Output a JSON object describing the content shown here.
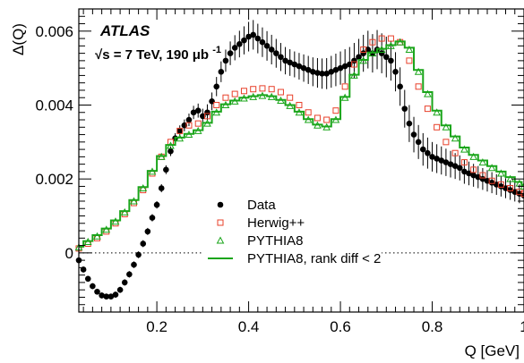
{
  "chart_data": {
    "type": "scatter",
    "title": "",
    "xlabel": "Q [GeV]",
    "ylabel": "Δ(Q)",
    "xlim": [
      0.03,
      1.0
    ],
    "ylim": [
      -0.0016,
      0.0066
    ],
    "x_tick_labels": [
      "0.2",
      "0.4",
      "0.6",
      "0.8",
      "1"
    ],
    "y_tick_labels": [
      "0",
      "0.002",
      "0.004",
      "0.006"
    ],
    "x_ticks": [
      0.2,
      0.4,
      0.6,
      0.8,
      1.0
    ],
    "y_ticks": [
      0,
      0.002,
      0.004,
      0.006
    ],
    "grid": false,
    "zero_line": "dotted",
    "annotations": {
      "experiment": "ATLAS",
      "energy": "√s = 7 TeV, 190 μb",
      "energy_sup": "-1"
    },
    "legend": {
      "placement": "lower-center",
      "entries": [
        {
          "label": "Data",
          "marker": "filled-circle",
          "color": "#000000"
        },
        {
          "label": "Herwig++",
          "marker": "open-square",
          "color": "#e8402a"
        },
        {
          "label": "PYTHIA8",
          "marker": "open-triangle",
          "color": "#1aa51a"
        },
        {
          "label": "PYTHIA8, rank diff < 2",
          "marker": "line",
          "color": "#1aa51a"
        }
      ]
    },
    "series": [
      {
        "name": "Data",
        "marker": "filled-circle",
        "color": "#000000",
        "points": [
          [
            0.03,
            -0.0002
          ],
          [
            0.04,
            -0.00045
          ],
          [
            0.05,
            -0.0007
          ],
          [
            0.06,
            -0.0009
          ],
          [
            0.07,
            -0.00105
          ],
          [
            0.08,
            -0.00115
          ],
          [
            0.09,
            -0.00118
          ],
          [
            0.1,
            -0.00118
          ],
          [
            0.11,
            -0.00113
          ],
          [
            0.12,
            -0.001
          ],
          [
            0.13,
            -0.0008
          ],
          [
            0.14,
            -0.00058
          ],
          [
            0.15,
            -0.00032
          ],
          [
            0.16,
            -5e-05
          ],
          [
            0.17,
            0.00025
          ],
          [
            0.18,
            0.00058
          ],
          [
            0.19,
            0.00095
          ],
          [
            0.2,
            0.0013
          ],
          [
            0.21,
            0.00175
          ],
          [
            0.22,
            0.00225
          ],
          [
            0.23,
            0.00275
          ],
          [
            0.24,
            0.0031
          ],
          [
            0.25,
            0.0033
          ],
          [
            0.26,
            0.00345
          ],
          [
            0.27,
            0.0036
          ],
          [
            0.28,
            0.0038
          ],
          [
            0.29,
            0.00385
          ],
          [
            0.3,
            0.0037
          ],
          [
            0.31,
            0.0038
          ],
          [
            0.32,
            0.0041
          ],
          [
            0.33,
            0.0045
          ],
          [
            0.34,
            0.0049
          ],
          [
            0.35,
            0.0052
          ],
          [
            0.36,
            0.0054
          ],
          [
            0.37,
            0.00555
          ],
          [
            0.38,
            0.00565
          ],
          [
            0.39,
            0.00575
          ],
          [
            0.4,
            0.00585
          ],
          [
            0.41,
            0.0059
          ],
          [
            0.42,
            0.0058
          ],
          [
            0.43,
            0.0057
          ],
          [
            0.44,
            0.0056
          ],
          [
            0.45,
            0.0055
          ],
          [
            0.46,
            0.0054
          ],
          [
            0.47,
            0.0053
          ],
          [
            0.48,
            0.0052
          ],
          [
            0.49,
            0.00515
          ],
          [
            0.5,
            0.0051
          ],
          [
            0.51,
            0.00505
          ],
          [
            0.52,
            0.005
          ],
          [
            0.53,
            0.00495
          ],
          [
            0.54,
            0.0049
          ],
          [
            0.55,
            0.00487
          ],
          [
            0.56,
            0.00485
          ],
          [
            0.57,
            0.00485
          ],
          [
            0.58,
            0.0049
          ],
          [
            0.59,
            0.00495
          ],
          [
            0.6,
            0.005
          ],
          [
            0.61,
            0.00505
          ],
          [
            0.62,
            0.0051
          ],
          [
            0.63,
            0.0052
          ],
          [
            0.64,
            0.0053
          ],
          [
            0.65,
            0.0054
          ],
          [
            0.66,
            0.0055
          ],
          [
            0.67,
            0.0054
          ],
          [
            0.68,
            0.0055
          ],
          [
            0.69,
            0.0054
          ],
          [
            0.7,
            0.0053
          ],
          [
            0.71,
            0.0052
          ],
          [
            0.72,
            0.0049
          ],
          [
            0.73,
            0.0045
          ],
          [
            0.74,
            0.0039
          ],
          [
            0.75,
            0.0035
          ],
          [
            0.76,
            0.0032
          ],
          [
            0.77,
            0.003
          ],
          [
            0.78,
            0.0028
          ],
          [
            0.79,
            0.0027
          ],
          [
            0.8,
            0.0026
          ],
          [
            0.81,
            0.00255
          ],
          [
            0.82,
            0.0025
          ],
          [
            0.83,
            0.00245
          ],
          [
            0.84,
            0.0024
          ],
          [
            0.85,
            0.00235
          ],
          [
            0.86,
            0.0023
          ],
          [
            0.87,
            0.0022
          ],
          [
            0.88,
            0.00215
          ],
          [
            0.89,
            0.0021
          ],
          [
            0.9,
            0.00205
          ],
          [
            0.91,
            0.002
          ],
          [
            0.92,
            0.00195
          ],
          [
            0.93,
            0.0019
          ],
          [
            0.94,
            0.00185
          ],
          [
            0.95,
            0.0018
          ],
          [
            0.96,
            0.00175
          ],
          [
            0.97,
            0.0017
          ],
          [
            0.98,
            0.00165
          ],
          [
            0.99,
            0.0016
          ],
          [
            1.0,
            0.00155
          ]
        ],
        "errors": [
          [
            0.03,
            8e-05
          ],
          [
            0.1,
            8e-05
          ],
          [
            0.2,
            0.0001
          ],
          [
            0.25,
            0.00015
          ],
          [
            0.3,
            0.0002
          ],
          [
            0.35,
            0.0003
          ],
          [
            0.4,
            0.0004
          ],
          [
            0.45,
            0.0004
          ],
          [
            0.5,
            0.00035
          ],
          [
            0.55,
            0.0004
          ],
          [
            0.6,
            0.00045
          ],
          [
            0.65,
            0.0005
          ],
          [
            0.7,
            0.00055
          ],
          [
            0.75,
            0.0005
          ],
          [
            0.8,
            0.0004
          ],
          [
            0.85,
            0.00035
          ],
          [
            0.9,
            0.0003
          ],
          [
            1.0,
            0.00025
          ]
        ]
      },
      {
        "name": "Herwig++",
        "marker": "open-square",
        "color": "#e8402a",
        "points": [
          [
            0.03,
            0.00012
          ],
          [
            0.05,
            0.00025
          ],
          [
            0.07,
            0.0004
          ],
          [
            0.09,
            0.00058
          ],
          [
            0.11,
            0.0008
          ],
          [
            0.13,
            0.00105
          ],
          [
            0.15,
            0.00135
          ],
          [
            0.17,
            0.0017
          ],
          [
            0.19,
            0.00215
          ],
          [
            0.21,
            0.0026
          ],
          [
            0.23,
            0.003
          ],
          [
            0.25,
            0.0033
          ],
          [
            0.27,
            0.00345
          ],
          [
            0.29,
            0.0035
          ],
          [
            0.31,
            0.0037
          ],
          [
            0.33,
            0.004
          ],
          [
            0.35,
            0.0042
          ],
          [
            0.37,
            0.0043
          ],
          [
            0.39,
            0.00438
          ],
          [
            0.41,
            0.00443
          ],
          [
            0.43,
            0.00445
          ],
          [
            0.45,
            0.00443
          ],
          [
            0.47,
            0.00435
          ],
          [
            0.49,
            0.0042
          ],
          [
            0.51,
            0.004
          ],
          [
            0.53,
            0.0038
          ],
          [
            0.55,
            0.00365
          ],
          [
            0.57,
            0.0036
          ],
          [
            0.59,
            0.00385
          ],
          [
            0.61,
            0.0045
          ],
          [
            0.63,
            0.0051
          ],
          [
            0.65,
            0.0055
          ],
          [
            0.67,
            0.0057
          ],
          [
            0.69,
            0.0058
          ],
          [
            0.71,
            0.0058
          ],
          [
            0.73,
            0.0057
          ],
          [
            0.75,
            0.0052
          ],
          [
            0.77,
            0.0045
          ],
          [
            0.79,
            0.0039
          ],
          [
            0.81,
            0.0034
          ],
          [
            0.83,
            0.003
          ],
          [
            0.85,
            0.0027
          ],
          [
            0.87,
            0.00245
          ],
          [
            0.89,
            0.00225
          ],
          [
            0.91,
            0.0021
          ],
          [
            0.93,
            0.00195
          ],
          [
            0.95,
            0.00185
          ],
          [
            0.97,
            0.00175
          ],
          [
            0.99,
            0.00165
          ],
          [
            1.0,
            0.0016
          ]
        ]
      },
      {
        "name": "PYTHIA8",
        "marker": "open-triangle",
        "color": "#1aa51a",
        "points": [
          [
            0.03,
            0.00015
          ],
          [
            0.05,
            0.0003
          ],
          [
            0.07,
            0.00045
          ],
          [
            0.09,
            0.00063
          ],
          [
            0.11,
            0.00085
          ],
          [
            0.13,
            0.0011
          ],
          [
            0.15,
            0.0014
          ],
          [
            0.17,
            0.00175
          ],
          [
            0.19,
            0.0022
          ],
          [
            0.21,
            0.0026
          ],
          [
            0.23,
            0.0029
          ],
          [
            0.25,
            0.0031
          ],
          [
            0.27,
            0.0032
          ],
          [
            0.29,
            0.0033
          ],
          [
            0.31,
            0.0035
          ],
          [
            0.33,
            0.0038
          ],
          [
            0.35,
            0.004
          ],
          [
            0.37,
            0.0041
          ],
          [
            0.39,
            0.00418
          ],
          [
            0.41,
            0.00422
          ],
          [
            0.43,
            0.00425
          ],
          [
            0.45,
            0.00422
          ],
          [
            0.47,
            0.00412
          ],
          [
            0.49,
            0.00398
          ],
          [
            0.51,
            0.0038
          ],
          [
            0.53,
            0.0036
          ],
          [
            0.55,
            0.00345
          ],
          [
            0.57,
            0.0034
          ],
          [
            0.59,
            0.0036
          ],
          [
            0.61,
            0.0042
          ],
          [
            0.63,
            0.0048
          ],
          [
            0.65,
            0.0052
          ],
          [
            0.67,
            0.0054
          ],
          [
            0.69,
            0.0055
          ],
          [
            0.71,
            0.0056
          ],
          [
            0.73,
            0.0057
          ],
          [
            0.75,
            0.0055
          ],
          [
            0.77,
            0.0049
          ],
          [
            0.79,
            0.0043
          ],
          [
            0.81,
            0.0038
          ],
          [
            0.83,
            0.0034
          ],
          [
            0.85,
            0.0031
          ],
          [
            0.87,
            0.0028
          ],
          [
            0.89,
            0.0026
          ],
          [
            0.91,
            0.00245
          ],
          [
            0.93,
            0.0023
          ],
          [
            0.95,
            0.00215
          ],
          [
            0.97,
            0.002
          ],
          [
            0.99,
            0.00188
          ],
          [
            1.0,
            0.0018
          ]
        ]
      },
      {
        "name": "PYTHIA8, rank diff < 2",
        "marker": "line",
        "color": "#1aa51a",
        "points": [
          [
            0.03,
            0.00017
          ],
          [
            0.05,
            0.00032
          ],
          [
            0.07,
            0.00048
          ],
          [
            0.09,
            0.00066
          ],
          [
            0.11,
            0.00088
          ],
          [
            0.13,
            0.00113
          ],
          [
            0.15,
            0.00143
          ],
          [
            0.17,
            0.00178
          ],
          [
            0.19,
            0.00222
          ],
          [
            0.21,
            0.00262
          ],
          [
            0.23,
            0.00292
          ],
          [
            0.25,
            0.00312
          ],
          [
            0.27,
            0.00322
          ],
          [
            0.29,
            0.00332
          ],
          [
            0.31,
            0.00352
          ],
          [
            0.33,
            0.00382
          ],
          [
            0.35,
            0.00402
          ],
          [
            0.37,
            0.00412
          ],
          [
            0.39,
            0.0042
          ],
          [
            0.41,
            0.00424
          ],
          [
            0.43,
            0.00427
          ],
          [
            0.45,
            0.00424
          ],
          [
            0.47,
            0.00414
          ],
          [
            0.49,
            0.004
          ],
          [
            0.51,
            0.00382
          ],
          [
            0.53,
            0.00362
          ],
          [
            0.55,
            0.00347
          ],
          [
            0.57,
            0.00342
          ],
          [
            0.59,
            0.00362
          ],
          [
            0.61,
            0.00422
          ],
          [
            0.63,
            0.00482
          ],
          [
            0.65,
            0.00522
          ],
          [
            0.67,
            0.00542
          ],
          [
            0.69,
            0.00552
          ],
          [
            0.71,
            0.00562
          ],
          [
            0.73,
            0.00572
          ],
          [
            0.75,
            0.00555
          ],
          [
            0.77,
            0.00495
          ],
          [
            0.79,
            0.00435
          ],
          [
            0.81,
            0.00385
          ],
          [
            0.83,
            0.00345
          ],
          [
            0.85,
            0.00315
          ],
          [
            0.87,
            0.00285
          ],
          [
            0.89,
            0.00265
          ],
          [
            0.91,
            0.0025
          ],
          [
            0.93,
            0.00235
          ],
          [
            0.95,
            0.0022
          ],
          [
            0.97,
            0.00205
          ],
          [
            0.99,
            0.00192
          ],
          [
            1.0,
            0.00184
          ]
        ]
      }
    ]
  }
}
